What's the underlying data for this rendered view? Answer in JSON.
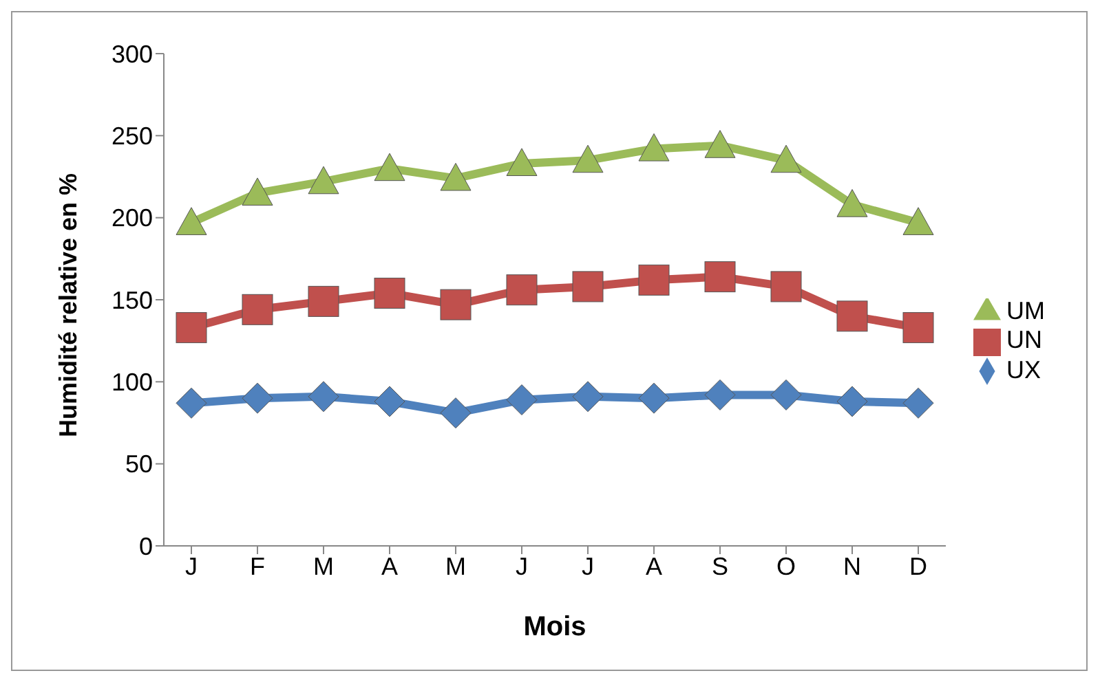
{
  "chart_data": {
    "type": "line",
    "xlabel": "Mois",
    "ylabel": "Humidité relative en %",
    "categories": [
      "J",
      "F",
      "M",
      "A",
      "M",
      "J",
      "J",
      "A",
      "S",
      "O",
      "N",
      "D"
    ],
    "series": [
      {
        "name": "UM",
        "color": "#9bbb59",
        "marker": "triangle",
        "values": [
          197,
          215,
          222,
          230,
          224,
          233,
          235,
          242,
          244,
          235,
          208,
          197
        ]
      },
      {
        "name": "UN",
        "color": "#c0504d",
        "marker": "square",
        "values": [
          133,
          144,
          149,
          154,
          147,
          156,
          158,
          162,
          164,
          158,
          140,
          133
        ]
      },
      {
        "name": "UX",
        "color": "#4f81bd",
        "marker": "diamond",
        "values": [
          87,
          90,
          91,
          88,
          81,
          89,
          91,
          90,
          92,
          92,
          88,
          87
        ]
      }
    ],
    "ylim": [
      0,
      300
    ],
    "yticks": [
      0,
      50,
      100,
      150,
      200,
      250,
      300
    ],
    "grid": false,
    "legend": "right",
    "line_style": "solid"
  }
}
